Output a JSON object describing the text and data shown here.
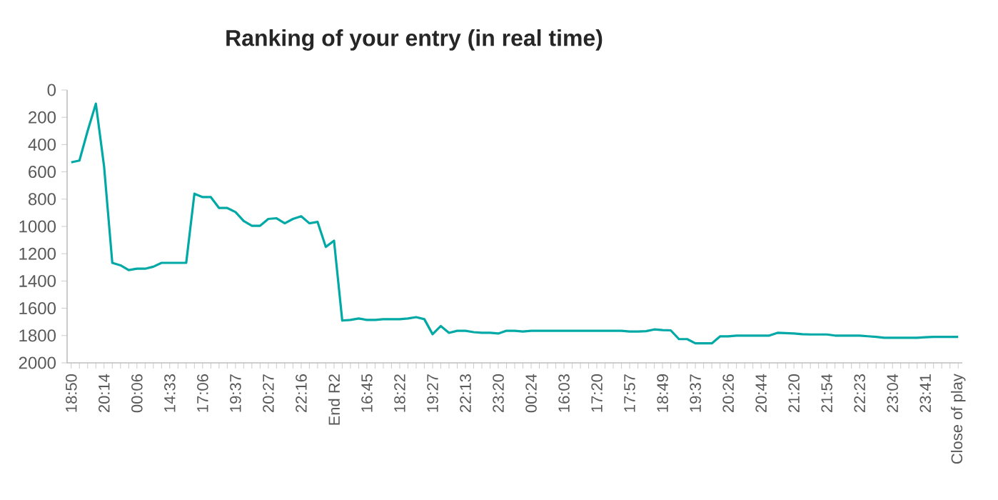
{
  "chart_data": {
    "type": "line",
    "title": "Ranking of your entry (in real time)",
    "categories": [
      "18:50",
      null,
      null,
      null,
      "20:14",
      null,
      null,
      null,
      "00:06",
      null,
      null,
      null,
      "14:33",
      null,
      null,
      null,
      "17:06",
      null,
      null,
      null,
      "19:37",
      null,
      null,
      null,
      "20:27",
      null,
      null,
      null,
      "22:16",
      null,
      null,
      null,
      "End R2",
      null,
      null,
      null,
      "16:45",
      null,
      null,
      null,
      "18:22",
      null,
      null,
      null,
      "19:27",
      null,
      null,
      null,
      "22:13",
      null,
      null,
      null,
      "23:20",
      null,
      null,
      null,
      "00:24",
      null,
      null,
      null,
      "16:03",
      null,
      null,
      null,
      "17:20",
      null,
      null,
      null,
      "17:57",
      null,
      null,
      null,
      "18:49",
      null,
      null,
      null,
      "19:37",
      null,
      null,
      null,
      "20:26",
      null,
      null,
      null,
      "20:44",
      null,
      null,
      null,
      "21:20",
      null,
      null,
      null,
      "21:54",
      null,
      null,
      null,
      "22:23",
      null,
      null,
      null,
      "23:04",
      null,
      null,
      null,
      "23:41",
      null,
      null,
      null,
      "Close of play"
    ],
    "series": [
      {
        "color": "#00a9a5",
        "values": [
          530,
          517,
          300,
          100,
          560,
          1267,
          1285,
          1320,
          1310,
          1310,
          1295,
          1267,
          1267,
          1267,
          1267,
          760,
          785,
          785,
          865,
          865,
          895,
          960,
          995,
          995,
          945,
          940,
          977,
          945,
          925,
          977,
          967,
          1150,
          1105,
          1690,
          1685,
          1675,
          1685,
          1685,
          1680,
          1680,
          1680,
          1675,
          1665,
          1680,
          1790,
          1730,
          1780,
          1765,
          1765,
          1775,
          1780,
          1780,
          1785,
          1765,
          1765,
          1770,
          1765,
          1765,
          1765,
          1765,
          1765,
          1765,
          1765,
          1765,
          1765,
          1765,
          1765,
          1765,
          1770,
          1770,
          1768,
          1755,
          1760,
          1762,
          1826,
          1826,
          1857,
          1857,
          1857,
          1806,
          1806,
          1800,
          1800,
          1800,
          1800,
          1800,
          1780,
          1782,
          1785,
          1790,
          1792,
          1792,
          1792,
          1800,
          1800,
          1800,
          1800,
          1805,
          1810,
          1816,
          1816,
          1816,
          1816,
          1816,
          1812,
          1810,
          1810,
          1810,
          1810
        ]
      }
    ],
    "ylim": [
      2000,
      0
    ],
    "yticks": [
      0,
      200,
      400,
      600,
      800,
      1000,
      1200,
      1400,
      1600,
      1800,
      2000
    ],
    "grid": false,
    "legend": false,
    "marker": "none",
    "line_style": "solid"
  }
}
